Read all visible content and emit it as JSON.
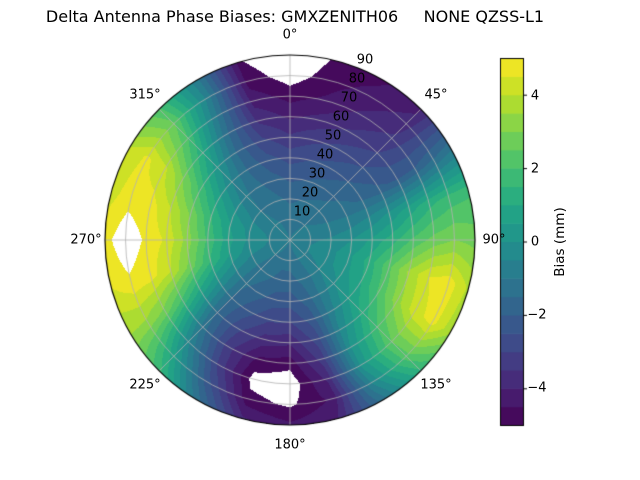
{
  "title": "Delta Antenna Phase Biases: GMXZENITH06     NONE QZSS-L1",
  "chart_data": {
    "type": "heatmap",
    "projection": "polar",
    "title": "Delta Antenna Phase Biases: GMXZENITH06     NONE QZSS-L1",
    "azimuth_labels": [
      "0°",
      "45°",
      "90°",
      "135°",
      "180°",
      "225°",
      "270°",
      "315°"
    ],
    "azimuth_degrees": [
      0,
      45,
      90,
      135,
      180,
      225,
      270,
      315
    ],
    "radial_tick_labels": [
      "10",
      "20",
      "30",
      "40",
      "50",
      "60",
      "70",
      "80",
      "90"
    ],
    "radial_ticks": [
      10,
      20,
      30,
      40,
      50,
      60,
      70,
      80,
      90
    ],
    "radial_max": 90,
    "radial_label_azimuth_deg": 22.5,
    "colorbar": {
      "label": "Bias (mm)",
      "tick_labels": [
        "−4",
        "−2",
        "0",
        "2",
        "4"
      ],
      "tick_values": [
        -4,
        -2,
        0,
        2,
        4
      ],
      "vmin": -5,
      "vmax": 5,
      "level_step": 0.5,
      "colormap": "viridis"
    },
    "viridis_anchors": [
      "#440154",
      "#482475",
      "#414487",
      "#355f8d",
      "#2a788e",
      "#21918c",
      "#22a884",
      "#44bf70",
      "#7ad151",
      "#bddf26",
      "#fde725"
    ],
    "out_of_range_color": "#ffffff",
    "grid_color": "#b2b2b2",
    "grid": {
      "azimuth_step_deg": 15,
      "radius_step": 10,
      "values": [
        [
          -1.0,
          -1.2,
          -1.6,
          -2.1,
          -2.7,
          -3.4,
          -4.1,
          -4.7,
          -5.3,
          -5.6
        ],
        [
          -1.0,
          -1.2,
          -1.5,
          -2.0,
          -2.5,
          -3.1,
          -3.8,
          -4.4,
          -4.7,
          -4.9
        ],
        [
          -0.9,
          -1.1,
          -1.4,
          -1.8,
          -2.3,
          -2.8,
          -3.4,
          -3.9,
          -4.3,
          -4.6
        ],
        [
          -0.9,
          -1.0,
          -1.3,
          -1.6,
          -2.0,
          -2.5,
          -3.0,
          -3.4,
          -3.8,
          -4.1
        ],
        [
          -0.8,
          -0.9,
          -1.1,
          -1.3,
          -1.6,
          -1.9,
          -2.1,
          -2.0,
          -1.6,
          -1.2
        ],
        [
          -0.7,
          -0.8,
          -0.8,
          -0.7,
          -0.4,
          0.1,
          0.7,
          1.3,
          1.7,
          1.9
        ],
        [
          -0.7,
          -0.6,
          -0.4,
          0.0,
          0.6,
          1.3,
          2.1,
          2.7,
          3.0,
          2.8
        ],
        [
          -0.6,
          -0.5,
          -0.2,
          0.4,
          1.2,
          2.4,
          3.6,
          4.5,
          4.8,
          3.9
        ],
        [
          -0.6,
          -0.5,
          -0.2,
          0.3,
          1.0,
          2.1,
          3.3,
          4.3,
          4.7,
          3.6
        ],
        [
          -0.7,
          -0.7,
          -0.5,
          -0.1,
          0.5,
          1.2,
          2.0,
          2.5,
          2.3,
          1.4
        ],
        [
          -0.8,
          -0.9,
          -1.0,
          -0.9,
          -0.7,
          -0.3,
          0.1,
          0.2,
          -0.4,
          -1.3
        ],
        [
          -0.9,
          -1.1,
          -1.4,
          -1.8,
          -2.3,
          -2.8,
          -3.3,
          -3.9,
          -4.4,
          -4.0
        ],
        [
          -1.0,
          -1.3,
          -1.7,
          -2.3,
          -3.0,
          -3.9,
          -4.8,
          -5.4,
          -5.1,
          -4.4
        ],
        [
          -1.0,
          -1.3,
          -1.7,
          -2.2,
          -2.9,
          -3.7,
          -4.6,
          -5.2,
          -4.8,
          -3.9
        ],
        [
          -0.9,
          -1.1,
          -1.4,
          -1.8,
          -2.3,
          -2.9,
          -3.3,
          -3.1,
          -2.3,
          -1.3
        ],
        [
          -0.8,
          -1.0,
          -1.2,
          -1.4,
          -1.6,
          -1.6,
          -1.2,
          -0.4,
          0.7,
          1.7
        ],
        [
          -0.8,
          -0.8,
          -0.8,
          -0.5,
          0.0,
          0.8,
          1.8,
          2.8,
          3.4,
          3.6
        ],
        [
          -0.7,
          -0.6,
          -0.3,
          0.4,
          1.5,
          2.8,
          4.0,
          4.7,
          4.9,
          4.5
        ],
        [
          -0.7,
          -0.5,
          -0.1,
          0.7,
          1.9,
          3.3,
          4.4,
          4.9,
          5.4,
          4.8
        ],
        [
          -0.7,
          -0.6,
          -0.2,
          0.5,
          1.6,
          2.9,
          4.0,
          4.7,
          4.8,
          4.3
        ],
        [
          -0.8,
          -0.8,
          -0.6,
          -0.1,
          0.7,
          1.8,
          3.0,
          4.1,
          4.6,
          4.0
        ],
        [
          -0.8,
          -0.9,
          -1.0,
          -0.9,
          -0.5,
          0.2,
          1.1,
          2.0,
          2.6,
          2.1
        ],
        [
          -0.9,
          -1.0,
          -1.2,
          -1.4,
          -1.6,
          -1.7,
          -1.5,
          -1.1,
          -0.7,
          -0.9
        ],
        [
          -1.0,
          -1.1,
          -1.4,
          -1.8,
          -2.3,
          -2.9,
          -3.6,
          -4.2,
          -4.7,
          -5.0
        ]
      ]
    }
  }
}
